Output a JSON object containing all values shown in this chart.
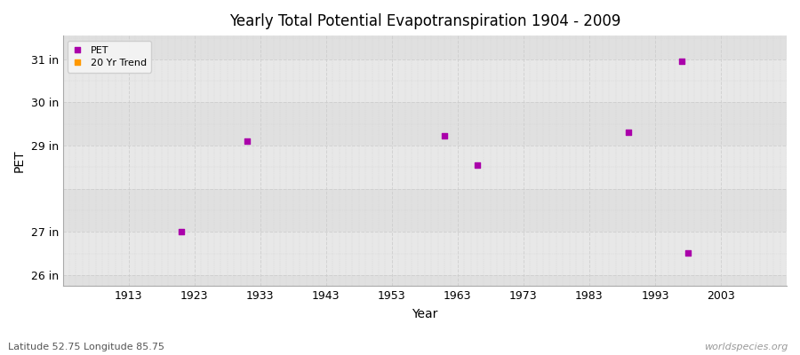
{
  "title": "Yearly Total Potential Evapotranspiration 1904 - 2009",
  "xlabel": "Year",
  "ylabel": "PET",
  "fig_bg_color": "#ffffff",
  "plot_bg_color": "#e8e8e8",
  "band_light": "#ececec",
  "band_dark": "#e0e0e0",
  "pet_color": "#aa00aa",
  "trend_color": "#ff9900",
  "pet_points": [
    [
      1921,
      27.0
    ],
    [
      1931,
      29.1
    ],
    [
      1961,
      29.22
    ],
    [
      1966,
      28.55
    ],
    [
      1989,
      29.32
    ],
    [
      1997,
      30.95
    ],
    [
      1998,
      26.52
    ]
  ],
  "xlim": [
    1903,
    2013
  ],
  "ylim": [
    25.75,
    31.55
  ],
  "yticks": [
    26,
    27,
    29,
    30,
    31
  ],
  "ytick_labels": [
    "26 in",
    "27 in",
    "29 in",
    "30 in",
    "31 in"
  ],
  "xticks": [
    1913,
    1923,
    1933,
    1943,
    1953,
    1963,
    1973,
    1983,
    1993,
    2003
  ],
  "watermark": "worldspecies.org",
  "subtitle": "Latitude 52.75 Longitude 85.75",
  "legend_pet": "PET",
  "legend_trend": "20 Yr Trend",
  "marker_size": 5,
  "grid_color": "#cccccc",
  "grid_linestyle": "--"
}
